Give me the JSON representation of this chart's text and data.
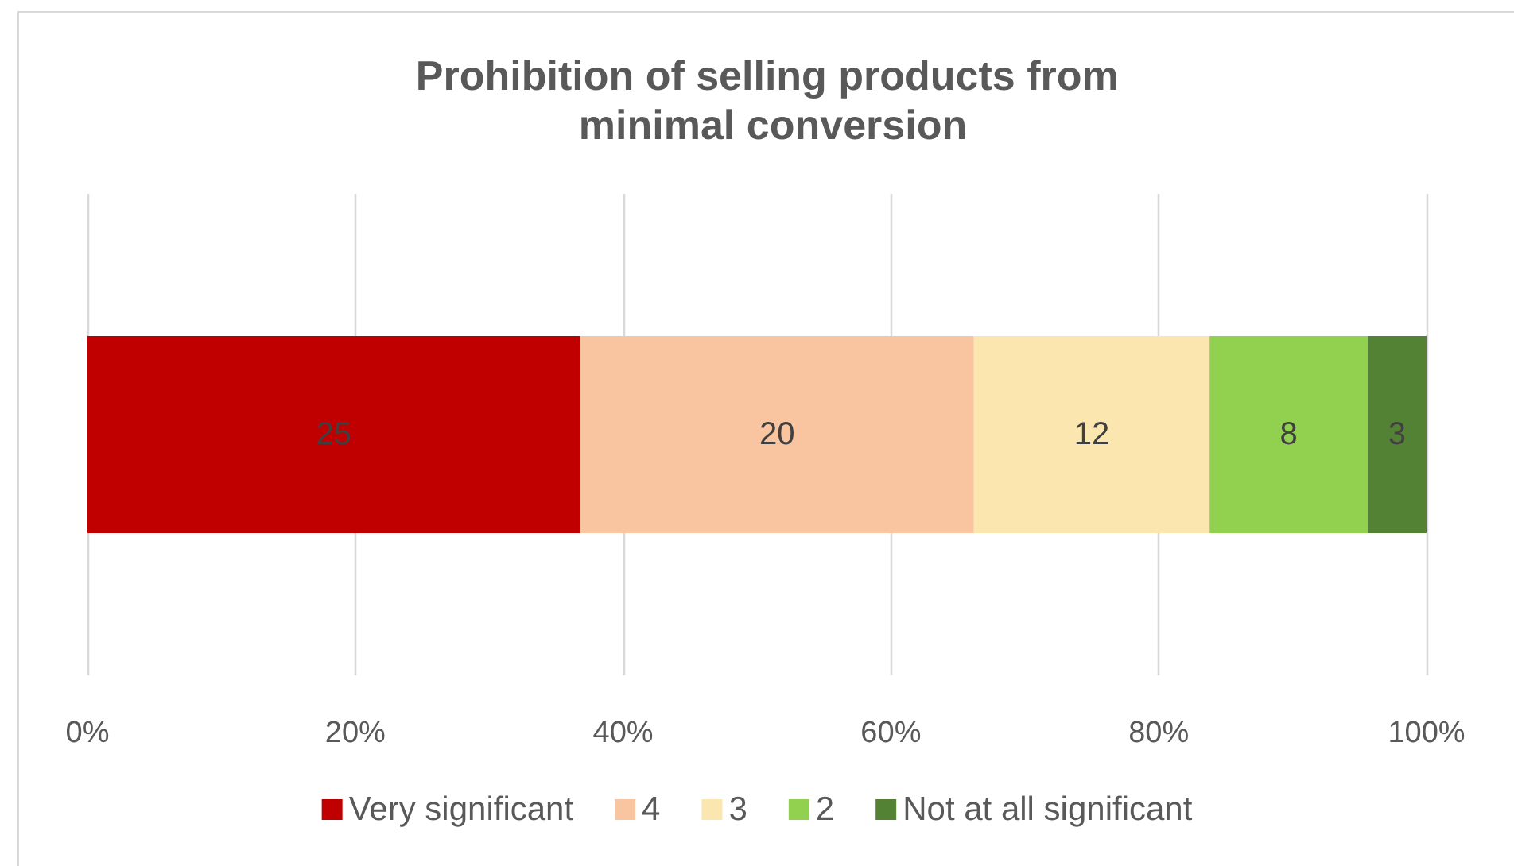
{
  "chart_data": {
    "type": "bar",
    "title": "Prohibition of selling products from minimal conversion",
    "orientation": "horizontal",
    "stacked": true,
    "categories": [
      null
    ],
    "series": [
      {
        "name": "Very significant",
        "color": "#c00000",
        "values": [
          36.8
        ]
      },
      {
        "name": "4",
        "color": "#f9c5a0",
        "values": [
          29.4
        ]
      },
      {
        "name": "3",
        "color": "#fce6b0",
        "values": [
          17.6
        ]
      },
      {
        "name": "2",
        "color": "#92d050",
        "values": [
          11.8
        ]
      },
      {
        "name": "Not at all significant",
        "color": "#548235",
        "values": [
          4.4
        ]
      }
    ],
    "annotations": [
      "25",
      "20",
      "12",
      "8",
      "3"
    ],
    "xlim": [
      0,
      100
    ],
    "xticks": [
      {
        "value": 0,
        "label": "0%"
      },
      {
        "value": 20,
        "label": "20%"
      },
      {
        "value": 40,
        "label": "40%"
      },
      {
        "value": 60,
        "label": "60%"
      },
      {
        "value": 80,
        "label": "80%"
      },
      {
        "value": 100,
        "label": "100%"
      }
    ],
    "grid": "x",
    "legend": "bottom",
    "tick_labels": "x"
  }
}
